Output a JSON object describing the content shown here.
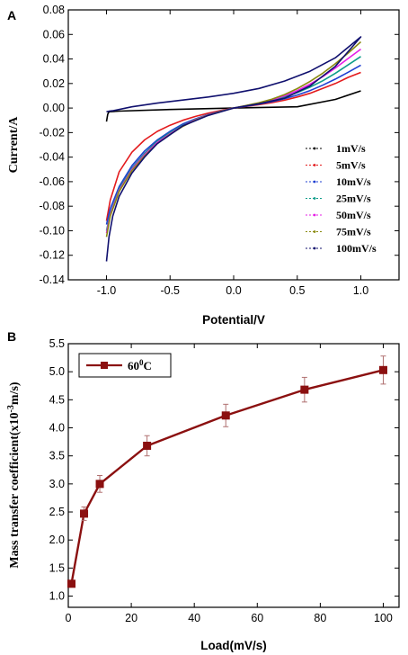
{
  "panels": {
    "a_label": "A",
    "b_label": "B"
  },
  "chart_data": [
    {
      "type": "line",
      "panel": "A",
      "xlabel": "Potential/V",
      "ylabel": "Current/A",
      "xlim": [
        -1.3,
        1.3
      ],
      "ylim": [
        -0.14,
        0.08
      ],
      "xticks": [
        "-1.0",
        "-0.5",
        "0.0",
        "0.5",
        "1.0"
      ],
      "yticks": [
        "0.08",
        "0.06",
        "0.04",
        "0.02",
        "0.00",
        "-0.02",
        "-0.04",
        "-0.06",
        "-0.08",
        "-0.10",
        "-0.12",
        "-0.14"
      ],
      "legend_position": "bottom-right",
      "series": [
        {
          "name": "1mV/s",
          "color": "#000000",
          "x": [
            -1.0,
            -0.99,
            -0.98,
            -0.9,
            -0.5,
            0.0,
            0.5,
            0.8,
            1.0
          ],
          "y": [
            -0.011,
            -0.005,
            -0.003,
            -0.0025,
            -0.0012,
            0.0,
            0.001,
            0.007,
            0.014
          ]
        },
        {
          "name": "5mV/s",
          "color": "#e31a1c",
          "x": [
            -1.0,
            -0.97,
            -0.9,
            -0.8,
            -0.7,
            -0.6,
            -0.5,
            -0.4,
            -0.3,
            -0.2,
            -0.1,
            0.0,
            0.1,
            0.2,
            0.3,
            0.4,
            0.5,
            0.6,
            0.7,
            0.8,
            0.9,
            1.0
          ],
          "y": [
            -0.092,
            -0.075,
            -0.052,
            -0.036,
            -0.026,
            -0.019,
            -0.014,
            -0.01,
            -0.0068,
            -0.0042,
            -0.002,
            0.0,
            0.0014,
            0.0028,
            0.0044,
            0.0064,
            0.009,
            0.012,
            0.016,
            0.02,
            0.025,
            0.029
          ]
        },
        {
          "name": "10mV/s",
          "color": "#1f3fd1",
          "x": [
            -1.0,
            -0.97,
            -0.9,
            -0.8,
            -0.7,
            -0.6,
            -0.5,
            -0.4,
            -0.3,
            -0.2,
            -0.1,
            0.0,
            0.1,
            0.2,
            0.3,
            0.4,
            0.5,
            0.6,
            0.7,
            0.8,
            0.9,
            1.0
          ],
          "y": [
            -0.095,
            -0.082,
            -0.064,
            -0.047,
            -0.035,
            -0.026,
            -0.019,
            -0.013,
            -0.0088,
            -0.0052,
            -0.0024,
            0.0,
            0.0016,
            0.0032,
            0.0052,
            0.0076,
            0.0106,
            0.0142,
            0.0186,
            0.0236,
            0.0292,
            0.035
          ]
        },
        {
          "name": "25mV/s",
          "color": "#0f9d8a",
          "x": [
            -1.0,
            -0.97,
            -0.9,
            -0.8,
            -0.7,
            -0.6,
            -0.5,
            -0.4,
            -0.3,
            -0.2,
            -0.1,
            0.0,
            0.1,
            0.2,
            0.3,
            0.4,
            0.5,
            0.6,
            0.7,
            0.8,
            0.9,
            1.0
          ],
          "y": [
            -0.1,
            -0.086,
            -0.066,
            -0.049,
            -0.037,
            -0.027,
            -0.02,
            -0.014,
            -0.0092,
            -0.0054,
            -0.0025,
            0.0,
            0.0018,
            0.0036,
            0.006,
            0.009,
            0.0126,
            0.017,
            0.0222,
            0.0284,
            0.0352,
            0.042
          ]
        },
        {
          "name": "50mV/s",
          "color": "#e61ee6",
          "x": [
            -1.0,
            -0.97,
            -0.9,
            -0.8,
            -0.7,
            -0.6,
            -0.5,
            -0.4,
            -0.3,
            -0.2,
            -0.1,
            0.0,
            0.1,
            0.2,
            0.3,
            0.4,
            0.5,
            0.6,
            0.7,
            0.8,
            0.9,
            1.0
          ],
          "y": [
            -0.102,
            -0.087,
            -0.067,
            -0.05,
            -0.038,
            -0.028,
            -0.021,
            -0.0145,
            -0.0095,
            -0.0056,
            -0.0026,
            0.0,
            0.002,
            0.004,
            0.0066,
            0.01,
            0.0142,
            0.0194,
            0.0256,
            0.0326,
            0.0404,
            0.048
          ]
        },
        {
          "name": "75mV/s",
          "color": "#8a8a10",
          "x": [
            -1.0,
            -0.97,
            -0.9,
            -0.8,
            -0.7,
            -0.6,
            -0.5,
            -0.4,
            -0.3,
            -0.2,
            -0.1,
            0.0,
            0.1,
            0.2,
            0.3,
            0.4,
            0.5,
            0.6,
            0.7,
            0.8,
            0.9,
            1.0
          ],
          "y": [
            -0.105,
            -0.088,
            -0.068,
            -0.051,
            -0.039,
            -0.029,
            -0.0215,
            -0.015,
            -0.0098,
            -0.0058,
            -0.0027,
            0.0,
            0.0022,
            0.0044,
            0.0072,
            0.011,
            0.0158,
            0.0216,
            0.0284,
            0.0362,
            0.0448,
            0.054
          ]
        },
        {
          "name": "100mV/s",
          "color": "#10106e",
          "x": [
            -1.0,
            -0.99,
            -0.98,
            -0.95,
            -0.8,
            -0.6,
            -0.4,
            -0.2,
            0.0,
            0.2,
            0.4,
            0.6,
            0.8,
            1.0,
            0.8,
            0.6,
            0.4,
            0.2,
            0.0,
            -0.2,
            -0.4,
            -0.6,
            -0.7,
            -0.8,
            -0.9,
            -0.95,
            -0.98,
            -1.0
          ],
          "y": [
            -0.003,
            -0.0028,
            -0.0026,
            -0.0022,
            0.001,
            0.004,
            0.0065,
            0.009,
            0.012,
            0.016,
            0.022,
            0.03,
            0.041,
            0.058,
            0.034,
            0.018,
            0.008,
            0.0035,
            0.0,
            -0.006,
            -0.0145,
            -0.029,
            -0.04,
            -0.053,
            -0.072,
            -0.088,
            -0.105,
            -0.125
          ]
        }
      ]
    },
    {
      "type": "line",
      "panel": "B",
      "xlabel": "Load(mV/s)",
      "ylabel": "Mass transfer coefficient(x10",
      "ylabel_sup": "-3",
      "ylabel_end": "m/s)",
      "xlim": [
        0,
        105
      ],
      "ylim": [
        0.8,
        5.5
      ],
      "xticks": [
        "0",
        "20",
        "40",
        "60",
        "80",
        "100"
      ],
      "yticks": [
        "5.5",
        "5.0",
        "4.5",
        "4.0",
        "3.5",
        "3.0",
        "2.5",
        "2.0",
        "1.5",
        "1.0"
      ],
      "legend_position": "top-left",
      "color": "#8b1010",
      "series": [
        {
          "name": "60",
          "name_sup": "0",
          "name_end": "C",
          "x": [
            1,
            5,
            10,
            25,
            50,
            75,
            100
          ],
          "y": [
            1.22,
            2.47,
            3.0,
            3.68,
            4.22,
            4.68,
            5.03
          ],
          "err": [
            0.05,
            0.12,
            0.15,
            0.18,
            0.2,
            0.22,
            0.25
          ]
        }
      ]
    }
  ]
}
